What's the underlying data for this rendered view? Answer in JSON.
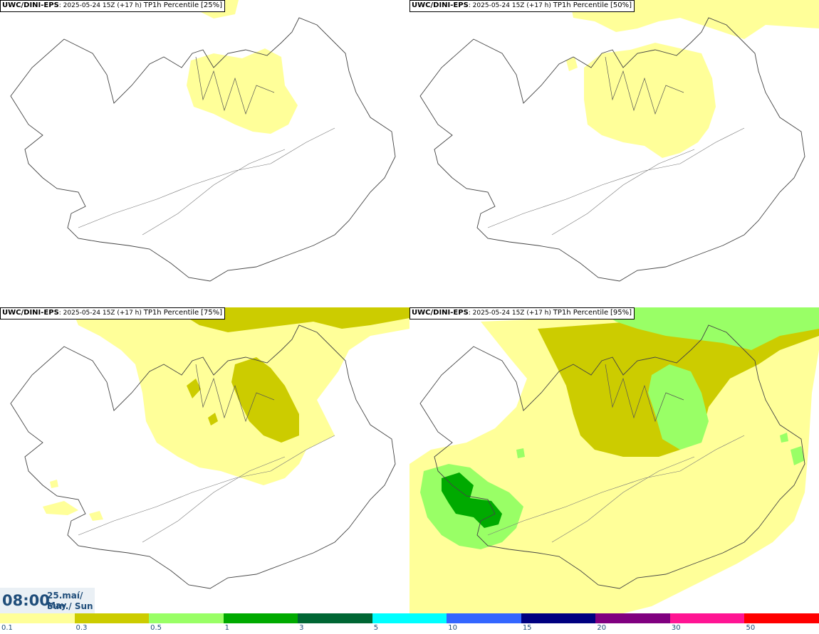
{
  "panels": [
    {
      "model": "UWC/DINI-EPS",
      "run": "2025-05-24 15Z (+17 h)",
      "product": "TP1h Percentile",
      "percentile": "[25%]"
    },
    {
      "model": "UWC/DINI-EPS",
      "run": "2025-05-24 15Z (+17 h)",
      "product": "TP1h Percentile",
      "percentile": "[50%]"
    },
    {
      "model": "UWC/DINI-EPS",
      "run": "2025-05-24 15Z (+17 h)",
      "product": "TP1h Percentile",
      "percentile": "[75%]"
    },
    {
      "model": "UWC/DINI-EPS",
      "run": "2025-05-24 15Z (+17 h)",
      "product": "TP1h Percentile",
      "percentile": "[95%]"
    }
  ],
  "valid_time": {
    "hour": "08:00",
    "date": "25.maí/ May",
    "day": "Sun./ Sun"
  },
  "legend": {
    "colors": [
      "#ffff99",
      "#cccc00",
      "#99ff66",
      "#00aa00",
      "#006633",
      "#00ffff",
      "#3366ff",
      "#000080",
      "#800080",
      "#ff1493",
      "#ff0000"
    ],
    "ticks": [
      "0.1",
      "0.3",
      "0.5",
      "1",
      "3",
      "5",
      "10",
      "15",
      "20",
      "30",
      "50"
    ]
  },
  "precip_colors": {
    "light": "#ffff99",
    "moderate": "#cccc00",
    "heavy": "#99ff66",
    "very_heavy": "#00aa00"
  }
}
